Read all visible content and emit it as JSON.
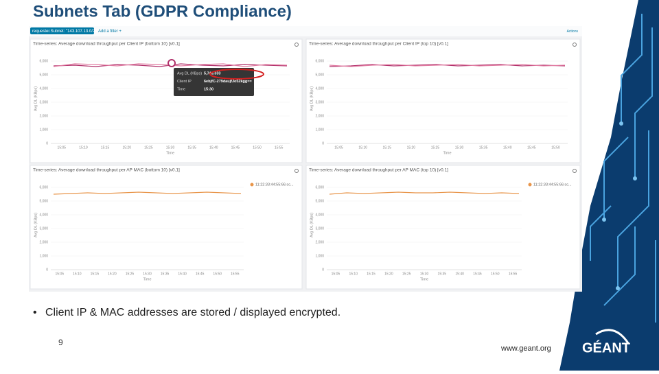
{
  "title": "Subnets Tab (GDPR Compliance)",
  "bullet": "Client IP & MAC addresses are stored / displayed encrypted.",
  "page_number": "9",
  "url": "www.geant.org",
  "logo": "GÉANT",
  "dashboard": {
    "filter": "requester.Subnet: \"143.107.13.0/24\"",
    "add_filter": "Add a filter +",
    "actions": "Actions",
    "panels": [
      {
        "title": "Time-series: Average download throughput per Client IP (bottom 10) [v0.1]",
        "y_label": "Avg DL (KBps)",
        "x_label": "Time",
        "ylim": [
          0,
          6500
        ],
        "yticks": [
          {
            "value": 0,
            "label": "0"
          },
          {
            "value": 1000,
            "label": "1,000"
          },
          {
            "value": 2000,
            "label": "2,000"
          },
          {
            "value": 3000,
            "label": "3,000"
          },
          {
            "value": 4000,
            "label": "4,000"
          },
          {
            "value": 5000,
            "label": "5,000"
          },
          {
            "value": 6000,
            "label": "6,000"
          }
        ],
        "xticks": [
          "15:05",
          "15:10",
          "15:15",
          "15:20",
          "15:25",
          "15:30",
          "15:35",
          "15:40",
          "15:45",
          "15:50",
          "15:55"
        ],
        "series": [
          {
            "color": "#b0306a",
            "values": [
              5650,
              5700,
              5600,
              5750,
              5700,
              5600,
              5800,
              5700,
              5650,
              5750,
              5700,
              5650
            ]
          },
          {
            "color": "#e07aa0",
            "values": [
              5600,
              5800,
              5750,
              5650,
              5800,
              5750,
              5650,
              5750,
              5800,
              5600,
              5750,
              5700
            ]
          }
        ],
        "tooltip": {
          "rows": [
            [
              "Avg DL (KBps)",
              "5,743.333"
            ],
            [
              "Client IP",
              "6ebjfC-279daujfJo52kgg=="
            ],
            [
              "Time",
              "15:30"
            ]
          ]
        }
      },
      {
        "title": "Time-series: Average download throughput per Client IP (top 10) [v0.1]",
        "y_label": "Avg DL (KBps)",
        "x_label": "Time",
        "ylim": [
          0,
          6500
        ],
        "yticks": [
          {
            "value": 0,
            "label": "0"
          },
          {
            "value": 1000,
            "label": "1,000"
          },
          {
            "value": 2000,
            "label": "2,000"
          },
          {
            "value": 3000,
            "label": "3,000"
          },
          {
            "value": 4000,
            "label": "4,000"
          },
          {
            "value": 5000,
            "label": "5,000"
          },
          {
            "value": 6000,
            "label": "6,000"
          }
        ],
        "xticks": [
          "15:05",
          "15:10",
          "15:15",
          "15:20",
          "15:25",
          "15:30",
          "15:35",
          "15:40",
          "15:45",
          "15:50"
        ],
        "series": [
          {
            "color": "#b0306a",
            "values": [
              5600,
              5650,
              5750,
              5650,
              5700,
              5750,
              5650,
              5700,
              5750,
              5650,
              5700,
              5650
            ]
          },
          {
            "color": "#e07aa0",
            "values": [
              5700,
              5600,
              5700,
              5750,
              5650,
              5700,
              5750,
              5650,
              5700,
              5750,
              5650,
              5700
            ]
          }
        ]
      },
      {
        "title": "Time-series: Average download throughput per AP MAC (bottom 10) [v0.1]",
        "y_label": "Avg DL (KBps)",
        "x_label": "Time",
        "ylim": [
          0,
          6500
        ],
        "yticks": [
          {
            "value": 0,
            "label": "0"
          },
          {
            "value": 1000,
            "label": "1,000"
          },
          {
            "value": 2000,
            "label": "2,000"
          },
          {
            "value": 3000,
            "label": "3,000"
          },
          {
            "value": 4000,
            "label": "4,000"
          },
          {
            "value": 5000,
            "label": "5,000"
          },
          {
            "value": 6000,
            "label": "6,000"
          }
        ],
        "xticks": [
          "15:05",
          "15:10",
          "15:15",
          "15:20",
          "15:25",
          "15:30",
          "15:35",
          "15:40",
          "15:45",
          "15:50",
          "15:55"
        ],
        "series": [
          {
            "name": "11:22:33:44:55:66:cc...",
            "color": "#e8954a",
            "values": [
              5500,
              5550,
              5600,
              5550,
              5600,
              5650,
              5600,
              5550,
              5600,
              5650,
              5600,
              5550
            ]
          }
        ]
      },
      {
        "title": "Time-series: Average download throughput per AP MAC (top 10) [v0.1]",
        "y_label": "Avg DL (KBps)",
        "x_label": "Time",
        "ylim": [
          0,
          6500
        ],
        "yticks": [
          {
            "value": 0,
            "label": "0"
          },
          {
            "value": 1000,
            "label": "1,000"
          },
          {
            "value": 2000,
            "label": "2,000"
          },
          {
            "value": 3000,
            "label": "3,000"
          },
          {
            "value": 4000,
            "label": "4,000"
          },
          {
            "value": 5000,
            "label": "5,000"
          },
          {
            "value": 6000,
            "label": "6,000"
          }
        ],
        "xticks": [
          "15:05",
          "15:10",
          "15:15",
          "15:20",
          "15:25",
          "15:30",
          "15:35",
          "15:40",
          "15:45",
          "15:50",
          "15:55"
        ],
        "series": [
          {
            "name": "11:22:33:44:55:66:cc...",
            "color": "#e8954a",
            "values": [
              5500,
              5600,
              5550,
              5600,
              5650,
              5600,
              5600,
              5650,
              5600,
              5550,
              5600,
              5550
            ]
          }
        ]
      }
    ]
  }
}
